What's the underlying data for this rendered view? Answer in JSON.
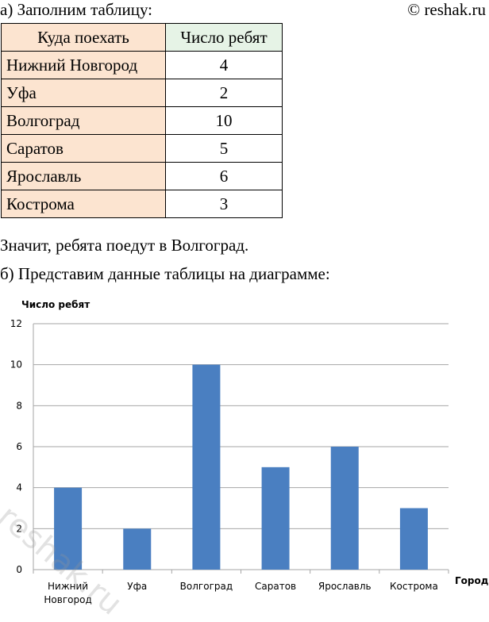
{
  "header": {
    "intro": "а) Заполним таблицу:",
    "copyright": "© reshak.ru"
  },
  "table": {
    "headers": [
      "Куда поехать",
      "Число ребят"
    ],
    "rows": [
      [
        "Нижний Новгород",
        "4"
      ],
      [
        "Уфа",
        "2"
      ],
      [
        "Волгоград",
        "10"
      ],
      [
        "Саратов",
        "5"
      ],
      [
        "Ярославль",
        "6"
      ],
      [
        "Кострома",
        "3"
      ]
    ]
  },
  "text": {
    "conclusion": "Значит, ребята поедут в Волгоград.",
    "part_b": "б) Представим данные таблицы на диаграмме:"
  },
  "watermark": "reshak.ru",
  "chart_data": {
    "type": "bar",
    "categories": [
      [
        "Нижний",
        "Новгород"
      ],
      [
        "Уфа"
      ],
      [
        "Волгоград"
      ],
      [
        "Саратов"
      ],
      [
        "Ярославль"
      ],
      [
        "Кострома"
      ]
    ],
    "values": [
      4,
      2,
      10,
      5,
      6,
      3
    ],
    "ylabel": "Число ребят",
    "xlabel": "Город",
    "ylim": [
      0,
      12
    ],
    "yticks": [
      0,
      2,
      4,
      6,
      8,
      10,
      12
    ],
    "grid": true,
    "bar_color": "#4a7fc1",
    "grid_color": "#a6a6a6"
  }
}
